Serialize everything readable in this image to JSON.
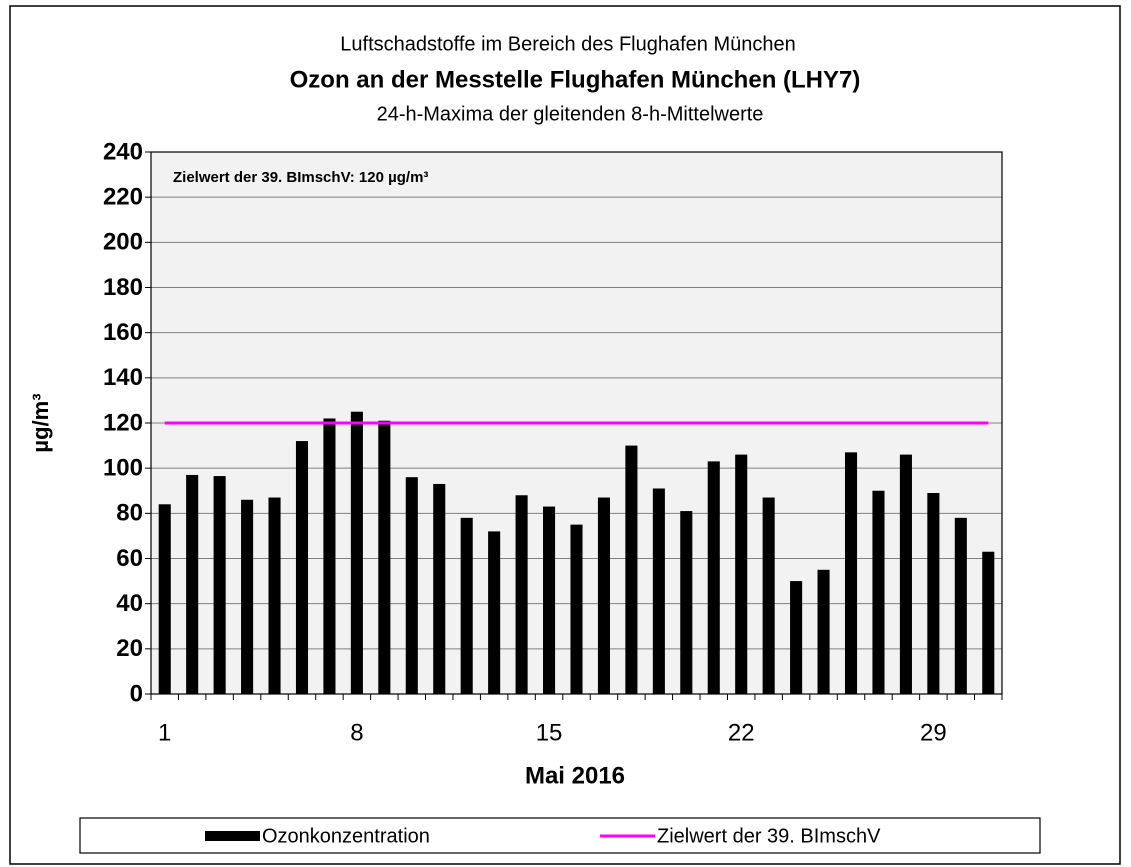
{
  "chart_data": {
    "type": "bar",
    "title_top": "Luftschadstoffe im Bereich des Flughafen München",
    "title": "Ozon an der Messtelle Flughafen München (LHY7)",
    "subtitle": "24-h-Maxima der gleitenden 8-h-Mittelwerte",
    "annotation": "Zielwert der 39. BImschV: 120 µg/m³",
    "x_label": "Mai 2016",
    "y_label": "µg/m³",
    "categories": [
      "1",
      null,
      null,
      null,
      null,
      null,
      null,
      "8",
      null,
      null,
      null,
      null,
      null,
      null,
      "15",
      null,
      null,
      null,
      null,
      null,
      null,
      "22",
      null,
      null,
      null,
      null,
      null,
      null,
      "29",
      null,
      null
    ],
    "series": [
      {
        "name": "Ozonkonzentration",
        "type": "bar",
        "color": "#000000",
        "values": [
          84,
          97,
          96.5,
          86,
          87,
          112,
          122,
          125,
          121,
          96,
          93,
          78,
          72,
          88,
          83,
          75,
          87,
          110,
          91,
          81,
          103,
          106,
          87,
          50,
          55,
          107,
          90,
          106,
          89,
          78,
          63
        ]
      },
      {
        "name": "Zielwert der 39. BImschV",
        "type": "line",
        "color": "#ff00ff",
        "values": [
          120,
          120,
          120,
          120,
          120,
          120,
          120,
          120,
          120,
          120,
          120,
          120,
          120,
          120,
          120,
          120,
          120,
          120,
          120,
          120,
          120,
          120,
          120,
          120,
          120,
          120,
          120,
          120,
          120,
          120,
          120
        ]
      }
    ],
    "ylim": [
      0,
      240
    ],
    "yticks": [
      0,
      20,
      40,
      60,
      80,
      100,
      120,
      140,
      160,
      180,
      200,
      220,
      240
    ],
    "grid": true,
    "legend": "bottom"
  }
}
